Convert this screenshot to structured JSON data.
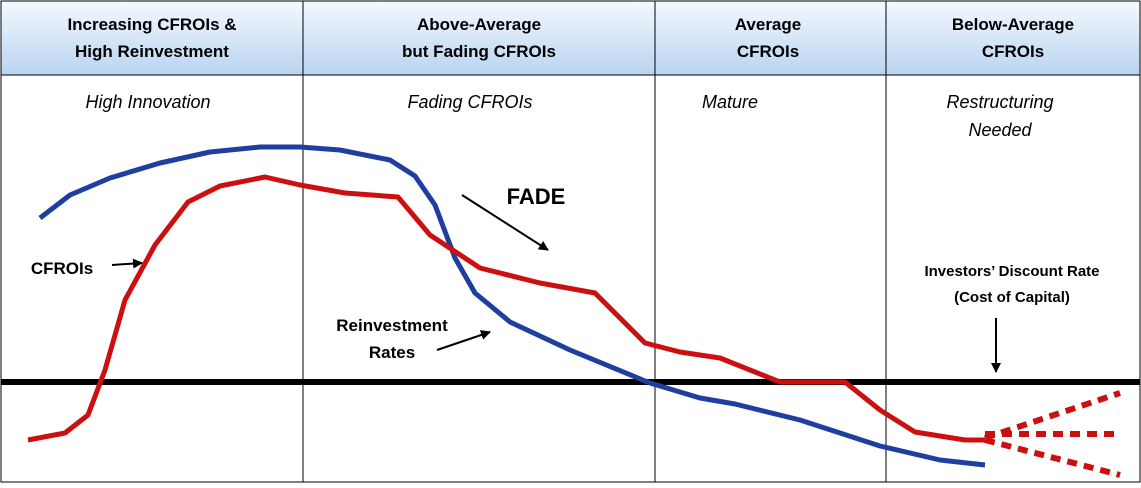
{
  "headers": [
    [
      "Increasing CFROIs &",
      "High Reinvestment"
    ],
    [
      "Above-Average",
      "but Fading CFROIs"
    ],
    [
      "Average",
      "CFROIs"
    ],
    [
      "Below-Average",
      "CFROIs"
    ]
  ],
  "phases": [
    [
      "High Innovation"
    ],
    [
      "Fading CFROIs"
    ],
    [
      "Mature"
    ],
    [
      "Restructuring",
      "Needed"
    ]
  ],
  "labels": {
    "fade": "FADE",
    "cfrois": "CFROIs",
    "reinvestment": [
      "Reinvestment",
      "Rates"
    ],
    "discount_rate": [
      "Investors’ Discount Rate",
      "(Cost of Capital)"
    ]
  }
}
